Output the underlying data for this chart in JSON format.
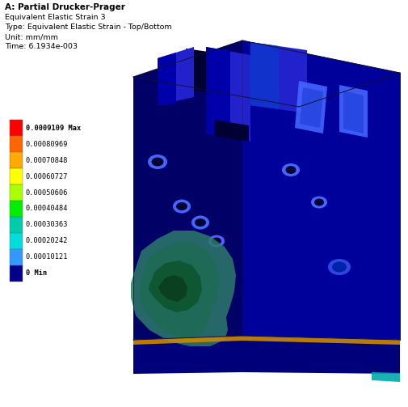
{
  "title_line1": "A: Partial Drucker-Prager",
  "title_line2": "Equivalent Elastic Strain 3",
  "title_line3": "Type: Equivalent Elastic Strain - Top/Bottom",
  "title_line4": "Unit: mm/mm",
  "title_line5": "Time: 6.1934e-003",
  "legend_labels": [
    "0.0009109 Max",
    "0.00080969",
    "0.00070848",
    "0.00060727",
    "0.00050606",
    "0.00040484",
    "0.00030363",
    "0.00020242",
    "0.00010121",
    "0 Min"
  ],
  "legend_colors": [
    "#FF0000",
    "#FF6600",
    "#FFAA00",
    "#FFFF00",
    "#AAFF00",
    "#00EE00",
    "#00CCAA",
    "#00DDDD",
    "#3399FF",
    "#00008B"
  ],
  "bg_color": "#FFFFFF",
  "box_dark": "#00007A",
  "box_medium": "#0000AA",
  "box_light": "#2222CC",
  "box_top": "#1111BB",
  "face_left": "#000066",
  "face_right": "#00009A",
  "inner_dark": "#000033",
  "bright_blue": "#4466FF",
  "mid_blue": "#2244DD",
  "bottom_stripe": "#8B6000",
  "corner_teal": "#00AAAA"
}
